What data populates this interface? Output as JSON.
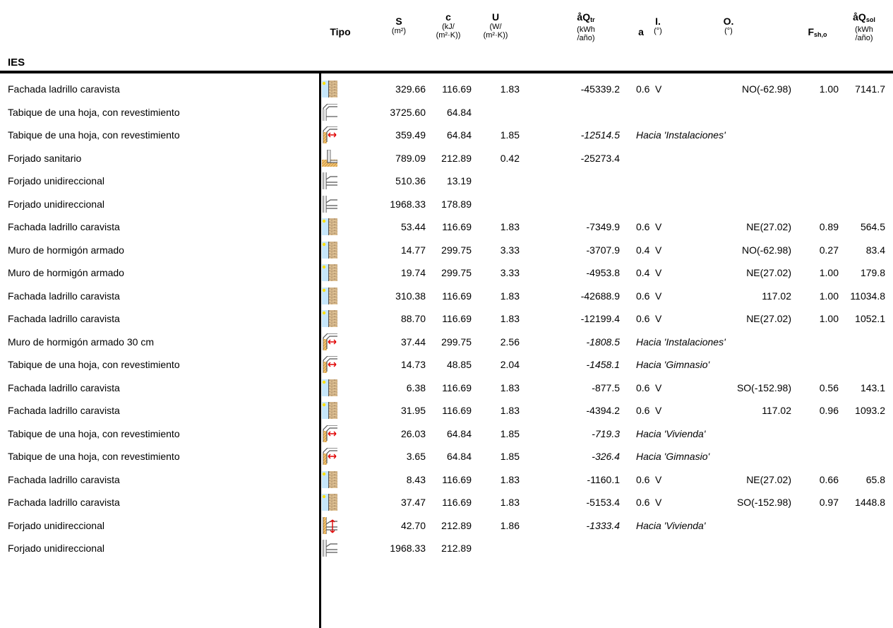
{
  "header": {
    "tipo": "Tipo",
    "S": {
      "main": "S",
      "unit": "(m²)"
    },
    "c": {
      "main": "c",
      "unit1": "(kJ/",
      "unit2": "(m²·K))"
    },
    "U": {
      "main": "U",
      "unit1": "(W/",
      "unit2": "(m²·K))"
    },
    "Qtr": {
      "main": "åQ",
      "sub": "tr",
      "unit1": "(kWh",
      "unit2": "/año)"
    },
    "a": {
      "main": "a"
    },
    "I": {
      "main": "I.",
      "unit": "(°)"
    },
    "O": {
      "main": "O.",
      "unit": "(°)"
    },
    "F": {
      "main": "F",
      "sub": "sh,o"
    },
    "Qsol": {
      "main": "åQ",
      "sub": "sol",
      "unit1": "(kWh",
      "unit2": "/año)"
    }
  },
  "section": "IES",
  "icon_types": {
    "ext": "exterior-wall-icon",
    "part": "partition-icon",
    "adj": "adjacent-space-wall-icon",
    "gnd": "ground-floor-slab-icon",
    "slab": "floor-slab-icon",
    "slabadj": "adjacent-floor-slab-icon"
  },
  "rows": [
    {
      "name": "Fachada ladrillo caravista",
      "type": "ext",
      "S": "329.66",
      "c": "116.69",
      "U": "1.83",
      "Q": "-45339.2",
      "a": "0.6",
      "I": "V",
      "O": "NO(-62.98)",
      "F": "1.00",
      "Qs": "7141.7"
    },
    {
      "name": "Tabique de una hoja, con revestimiento",
      "type": "part",
      "S": "3725.60",
      "c": "64.84"
    },
    {
      "name": "Tabique de una hoja, con revestimiento",
      "type": "adj",
      "S": "359.49",
      "c": "64.84",
      "U": "1.85",
      "Q": "-12514.5",
      "note": "Hacia 'Instalaciones'"
    },
    {
      "name": "Forjado sanitario",
      "type": "gnd",
      "S": "789.09",
      "c": "212.89",
      "U": "0.42",
      "Q": "-25273.4"
    },
    {
      "name": "Forjado unidireccional",
      "type": "slab",
      "S": "510.36",
      "c": "13.19"
    },
    {
      "name": "Forjado unidireccional",
      "type": "slab",
      "S": "1968.33",
      "c": "178.89"
    },
    {
      "name": "Fachada ladrillo caravista",
      "type": "ext",
      "S": "53.44",
      "c": "116.69",
      "U": "1.83",
      "Q": "-7349.9",
      "a": "0.6",
      "I": "V",
      "O": "NE(27.02)",
      "F": "0.89",
      "Qs": "564.5"
    },
    {
      "name": "Muro de hormigón armado",
      "type": "ext",
      "S": "14.77",
      "c": "299.75",
      "U": "3.33",
      "Q": "-3707.9",
      "a": "0.4",
      "I": "V",
      "O": "NO(-62.98)",
      "F": "0.27",
      "Qs": "83.4"
    },
    {
      "name": "Muro de hormigón armado",
      "type": "ext",
      "S": "19.74",
      "c": "299.75",
      "U": "3.33",
      "Q": "-4953.8",
      "a": "0.4",
      "I": "V",
      "O": "NE(27.02)",
      "F": "1.00",
      "Qs": "179.8"
    },
    {
      "name": "Fachada ladrillo caravista",
      "type": "ext",
      "S": "310.38",
      "c": "116.69",
      "U": "1.83",
      "Q": "-42688.9",
      "a": "0.6",
      "I": "V",
      "O": "117.02",
      "F": "1.00",
      "Qs": "11034.8"
    },
    {
      "name": "Fachada ladrillo caravista",
      "type": "ext",
      "S": "88.70",
      "c": "116.69",
      "U": "1.83",
      "Q": "-12199.4",
      "a": "0.6",
      "I": "V",
      "O": "NE(27.02)",
      "F": "1.00",
      "Qs": "1052.1"
    },
    {
      "name": "Muro de hormigón armado 30 cm",
      "type": "adj",
      "S": "37.44",
      "c": "299.75",
      "U": "2.56",
      "Q": "-1808.5",
      "note": "Hacia 'Instalaciones'"
    },
    {
      "name": "Tabique de una hoja, con revestimiento",
      "type": "adj",
      "S": "14.73",
      "c": "48.85",
      "U": "2.04",
      "Q": "-1458.1",
      "note": "Hacia 'Gimnasio'"
    },
    {
      "name": "Fachada ladrillo caravista",
      "type": "ext",
      "S": "6.38",
      "c": "116.69",
      "U": "1.83",
      "Q": "-877.5",
      "a": "0.6",
      "I": "V",
      "O": "SO(-152.98)",
      "F": "0.56",
      "Qs": "143.1"
    },
    {
      "name": "Fachada ladrillo caravista",
      "type": "ext",
      "S": "31.95",
      "c": "116.69",
      "U": "1.83",
      "Q": "-4394.2",
      "a": "0.6",
      "I": "V",
      "O": "117.02",
      "F": "0.96",
      "Qs": "1093.2"
    },
    {
      "name": "Tabique de una hoja, con revestimiento",
      "type": "adj",
      "S": "26.03",
      "c": "64.84",
      "U": "1.85",
      "Q": "-719.3",
      "note": "Hacia 'Vivienda'"
    },
    {
      "name": "Tabique de una hoja, con revestimiento",
      "type": "adj",
      "S": "3.65",
      "c": "64.84",
      "U": "1.85",
      "Q": "-326.4",
      "note": "Hacia 'Gimnasio'"
    },
    {
      "name": "Fachada ladrillo caravista",
      "type": "ext",
      "S": "8.43",
      "c": "116.69",
      "U": "1.83",
      "Q": "-1160.1",
      "a": "0.6",
      "I": "V",
      "O": "NE(27.02)",
      "F": "0.66",
      "Qs": "65.8"
    },
    {
      "name": "Fachada ladrillo caravista",
      "type": "ext",
      "S": "37.47",
      "c": "116.69",
      "U": "1.83",
      "Q": "-5153.4",
      "a": "0.6",
      "I": "V",
      "O": "SO(-152.98)",
      "F": "0.97",
      "Qs": "1448.8"
    },
    {
      "name": "Forjado unidireccional",
      "type": "slabadj",
      "S": "42.70",
      "c": "212.89",
      "U": "1.86",
      "Q": "-1333.4",
      "note": "Hacia 'Vivienda'"
    },
    {
      "name": "Forjado unidireccional",
      "type": "slab",
      "S": "1968.33",
      "c": "212.89"
    }
  ]
}
